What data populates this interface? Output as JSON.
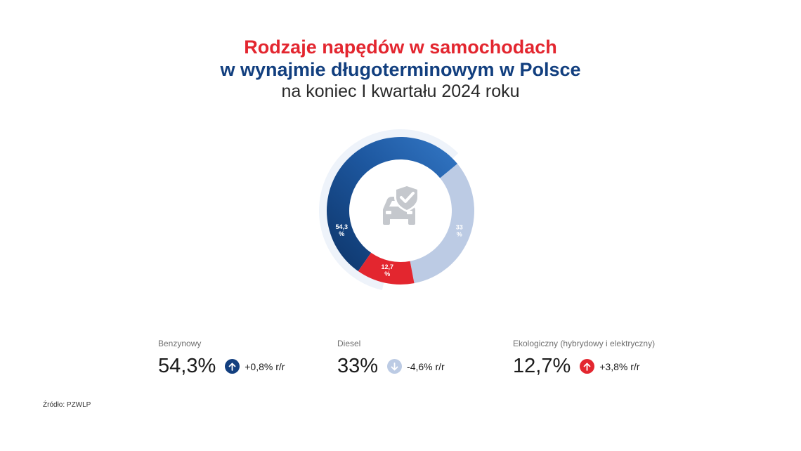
{
  "title": {
    "line1": "Rodzaje napędów w samochodach",
    "line2": "w wynajmie długoterminowym w Polsce",
    "line3": "na koniec I kwartału 2024 roku"
  },
  "chart_data": {
    "type": "pie",
    "variant": "donut",
    "categories": [
      "Benzynowy",
      "Diesel",
      "Ekologiczny (hybrydowy i elektryczny)"
    ],
    "values": [
      54.3,
      33,
      12.7
    ],
    "data_labels": [
      "54,3\n%",
      "33\n%",
      "12,7\n%"
    ],
    "colors": [
      "#1d579f",
      "#bccbe4",
      "#e3262f"
    ],
    "center_icon": "car-shield-check-icon"
  },
  "stats": [
    {
      "label": "Benzynowy",
      "value": "54,3%",
      "change": "+0,8% r/r",
      "direction": "up",
      "color": "#123f7f"
    },
    {
      "label": "Diesel",
      "value": "33%",
      "change": "-4,6% r/r",
      "direction": "down",
      "color": "#bccbe4"
    },
    {
      "label": "Ekologiczny (hybrydowy i elektryczny)",
      "value": "12,7%",
      "change": "+3,8% r/r",
      "direction": "up",
      "color": "#e3262f"
    }
  ],
  "source": "Źródło: PZWLP"
}
